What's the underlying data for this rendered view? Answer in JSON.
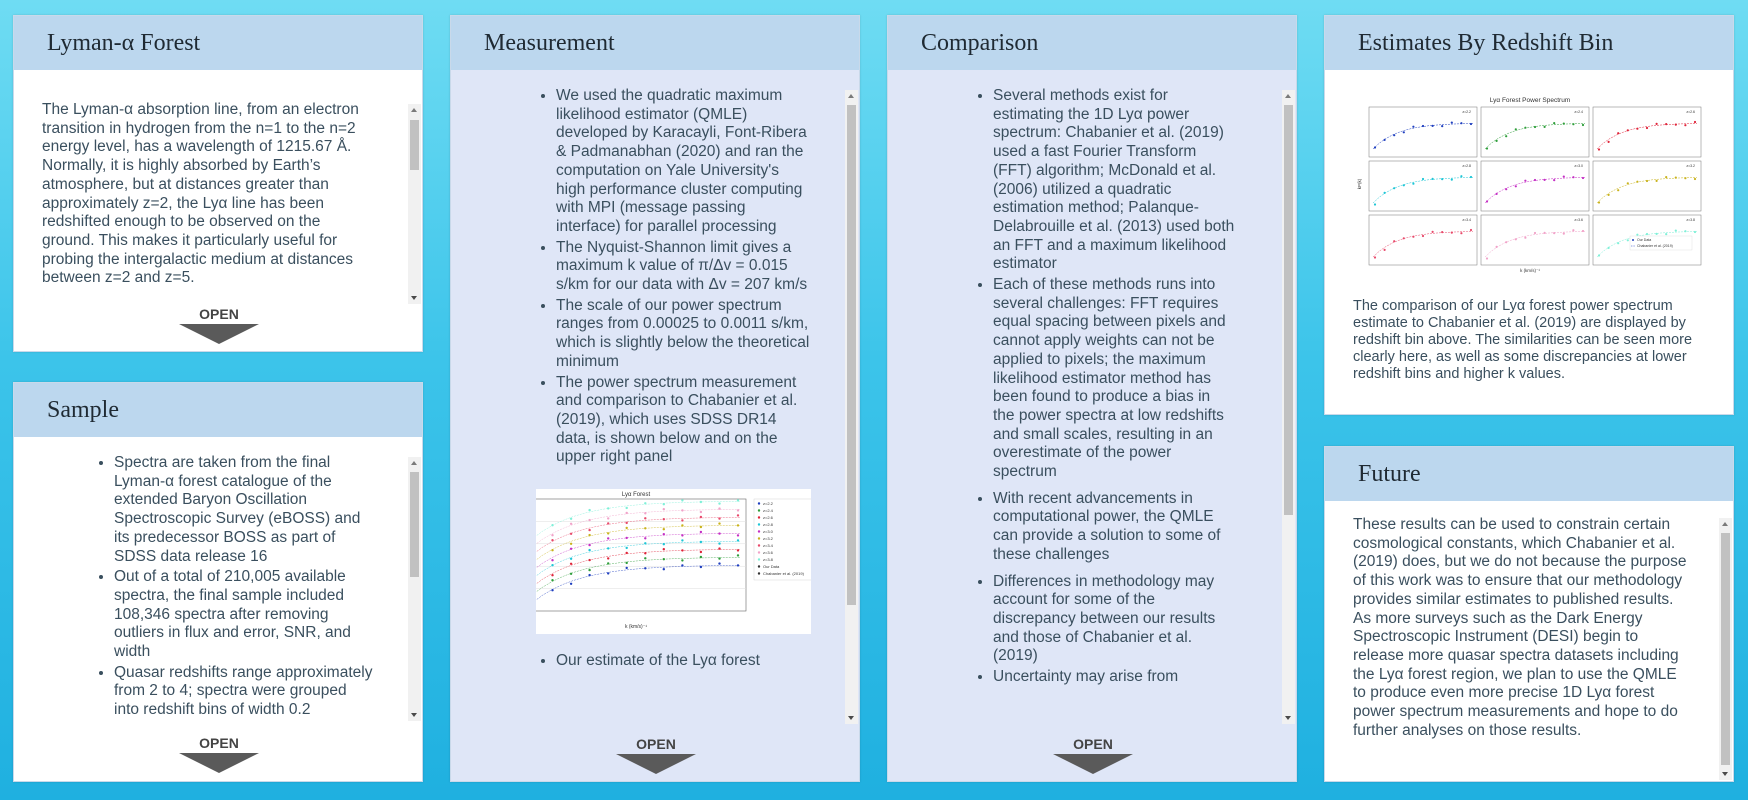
{
  "panels": {
    "lyman": {
      "title": "Lyman-α Forest",
      "text": "The Lyman-α absorption line, from an electron transition in hydrogen from the n=1 to the n=2 energy level, has a wavelength of 1215.67 Å. Normally, it is highly absorbed by Earth’s atmosphere, but at distances greater than approximately z=2, the Lyα line has been redshifted enough to be observed on the ground. This makes it particularly useful for probing the intergalactic medium at distances between z=2 and z=5.",
      "open_label": "OPEN"
    },
    "sample": {
      "title": "Sample",
      "items": [
        "Spectra are taken from the final Lyman-α forest catalogue of the extended Baryon Oscillation Spectroscopic Survey (eBOSS) and its predecessor BOSS as part of SDSS data release 16",
        "Out of a total of 210,005 available spectra, the final sample included 108,346 spectra after removing outliers in flux and error, SNR, and width",
        "Quasar redshifts range approximately from 2 to 4; spectra were grouped into redshift bins of width 0.2"
      ],
      "open_label": "OPEN"
    },
    "measurement": {
      "title": "Measurement",
      "items": [
        "We used the quadratic maximum likelihood estimator (QMLE) developed by Karacayli, Font-Ribera & Padmanabhan (2020) and ran the computation on Yale University's high performance cluster computing with MPI (message passing interface) for parallel processing",
        "The Nyquist-Shannon limit gives a maximum k value of π/Δv = 0.015 s/km for our data with Δv = 207 km/s",
        "The scale of our power spectrum ranges from 0.00025 to 0.0011 s/km, which is slightly below the theoretical minimum",
        "The power spectrum measurement and comparison to Chabanier et al. (2019), which uses SDSS DR14 data, is shown below and on the upper right panel"
      ],
      "figure": {
        "title": "Lyα Forest",
        "xlabel": "k (km/s)⁻¹",
        "ylabel": "kP(k)",
        "legend": [
          "z=2.2",
          "z=2.4",
          "z=2.6",
          "z=2.8",
          "z=3.0",
          "z=3.2",
          "z=3.4",
          "z=3.6",
          "z=3.8",
          "Our Data",
          "Chabanier et al. (2019)"
        ],
        "colors": [
          "#1f3fbf",
          "#2e9e3a",
          "#e0243a",
          "#1ec6d6",
          "#c42fc4",
          "#c9b31c",
          "#e84a6b",
          "#f1a3c9",
          "#7ff0d8"
        ]
      },
      "trailing_text": "Our estimate of the Lyα forest",
      "open_label": "OPEN"
    },
    "comparison": {
      "title": "Comparison",
      "items": [
        "Several methods exist for estimating the 1D Lyα power spectrum: Chabanier et al. (2019) used a fast Fourier Transform (FFT) algorithm; McDonald et al. (2006) utilized a quadratic estimation method; Palanque-Delabrouille et al. (2013) used both an FFT and a maximum likelihood estimator",
        "Each of these methods runs into several challenges: FFT requires equal spacing between pixels and cannot apply weights can not be applied to pixels; the maximum likelihood estimator method has been found to produce a bias in the power spectra at low redshifts and small scales, resulting in an overestimate of the power spectrum",
        "With recent advancements in computational power, the QMLE can provide a solution to some of these challenges",
        "Differences in methodology may account for some of the discrepancy between our results and those of Chabanier et al. (2019)",
        "Uncertainty may arise from"
      ],
      "open_label": "OPEN"
    },
    "estimates": {
      "title": "Estimates By Redshift Bin",
      "figure": {
        "title": "Lyα Forest Power Spectrum",
        "xlabel": "k (km/s)⁻¹",
        "ylabel": "kP(k)",
        "subplots": [
          "z=2.2",
          "z=2.4",
          "z=2.6",
          "z=2.8",
          "z=3.0",
          "z=3.2",
          "z=3.4",
          "z=3.6",
          "z=3.8"
        ],
        "legend": [
          "Our Data",
          "Chabanier et al. (2019)"
        ],
        "colors": [
          "#1f3fbf",
          "#2e9e3a",
          "#e0243a",
          "#1ec6d6",
          "#c42fc4",
          "#c9b31c",
          "#e84a6b",
          "#f1a3c9",
          "#7ff0d8"
        ]
      },
      "caption": "The comparison of our Lyα forest power spectrum estimate to Chabanier et al. (2019) are displayed by redshift bin above. The similarities can be seen more clearly here, as well as some discrepancies at lower redshift bins and higher k values."
    },
    "future": {
      "title": "Future",
      "text": "These results can be used to constrain certain cosmological constants, which Chabanier et al. (2019) does, but we do not because the purpose of this work was to ensure that our methodology provides similar estimates to published results. As more surveys such as the Dark Energy Spectroscopic Instrument (DESI) begin to release more quasar spectra datasets including the Lyα forest region, we plan to use the QMLE to produce even more precise 1D Lyα forest power spectrum measurements and hope to do further analyses on those results."
    }
  }
}
